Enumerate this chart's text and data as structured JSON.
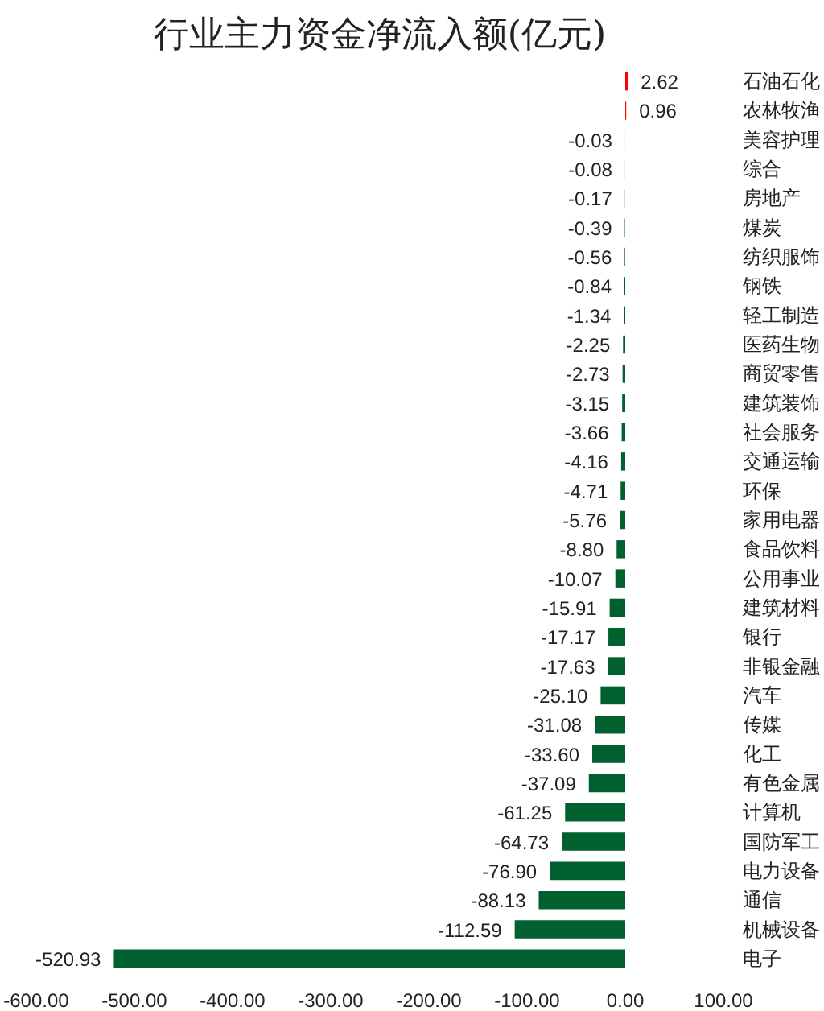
{
  "chart_data": {
    "type": "bar",
    "orientation": "horizontal",
    "title": "行业主力资金净流入额(亿元)",
    "categories": [
      "石油石化",
      "农林牧渔",
      "美容护理",
      "综合",
      "房地产",
      "煤炭",
      "纺织服饰",
      "钢铁",
      "轻工制造",
      "医药生物",
      "商贸零售",
      "建筑装饰",
      "社会服务",
      "交通运输",
      "环保",
      "家用电器",
      "食品饮料",
      "公用事业",
      "建筑材料",
      "银行",
      "非银金融",
      "汽车",
      "传媒",
      "化工",
      "有色金属",
      "计算机",
      "国防军工",
      "电力设备",
      "通信",
      "机械设备",
      "电子"
    ],
    "values": [
      2.62,
      0.96,
      -0.03,
      -0.08,
      -0.17,
      -0.39,
      -0.56,
      -0.84,
      -1.34,
      -2.25,
      -2.73,
      -3.15,
      -3.66,
      -4.16,
      -4.71,
      -5.76,
      -8.8,
      -10.07,
      -15.91,
      -17.17,
      -17.63,
      -25.1,
      -31.08,
      -33.6,
      -37.09,
      -61.25,
      -64.73,
      -76.9,
      -88.13,
      -112.59,
      -520.93
    ],
    "colors": [
      "#ff0000",
      "#ff0000",
      "#00612e",
      "#00612e",
      "#00612e",
      "#00612e",
      "#00612e",
      "#00612e",
      "#00612e",
      "#00612e",
      "#00612e",
      "#00612e",
      "#00612e",
      "#00612e",
      "#00612e",
      "#00612e",
      "#00612e",
      "#00612e",
      "#00612e",
      "#00612e",
      "#00612e",
      "#00612e",
      "#00612e",
      "#00612e",
      "#00612e",
      "#00612e",
      "#00612e",
      "#00612e",
      "#00612e",
      "#00612e",
      "#00612e"
    ],
    "value_labels": [
      "2.62",
      "0.96",
      "-0.03",
      "-0.08",
      "-0.17",
      "-0.39",
      "-0.56",
      "-0.84",
      "-1.34",
      "-2.25",
      "-2.73",
      "-3.15",
      "-3.66",
      "-4.16",
      "-4.71",
      "-5.76",
      "-8.80",
      "-10.07",
      "-15.91",
      "-17.17",
      "-17.63",
      "-25.10",
      "-31.08",
      "-33.60",
      "-37.09",
      "-61.25",
      "-64.73",
      "-76.90",
      "-88.13",
      "-112.59",
      "-520.93"
    ],
    "xlim": [
      -600,
      100
    ],
    "xticks": [
      {
        "value": -600,
        "label": "-600.00"
      },
      {
        "value": -500,
        "label": "-500.00"
      },
      {
        "value": -400,
        "label": "-400.00"
      },
      {
        "value": -300,
        "label": "-300.00"
      },
      {
        "value": -200,
        "label": "-200.00"
      },
      {
        "value": -100,
        "label": "-100.00"
      },
      {
        "value": 0,
        "label": "0.00"
      },
      {
        "value": 100,
        "label": "100.00"
      }
    ],
    "grid": false
  }
}
